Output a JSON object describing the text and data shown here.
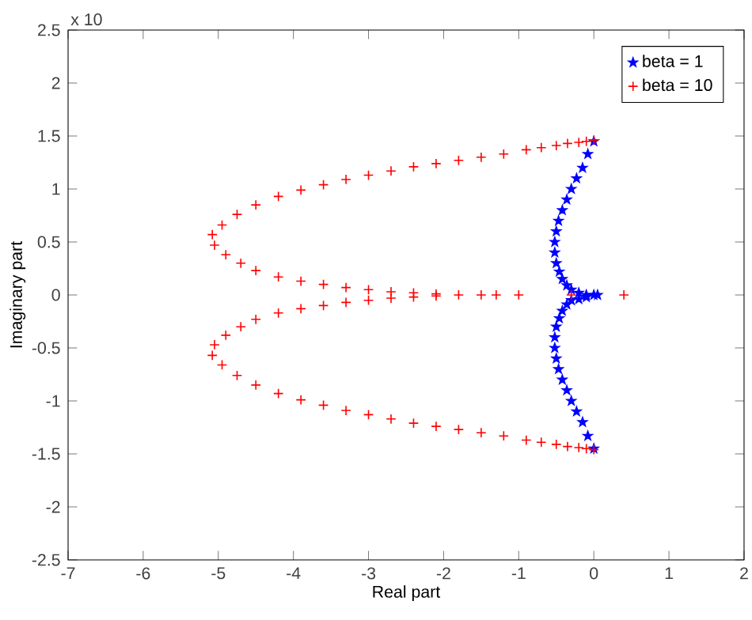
{
  "chart_data": {
    "type": "scatter",
    "xlabel": "Real part",
    "ylabel": "Imaginary part",
    "annotations": [
      "x 10"
    ],
    "xlim": [
      -7,
      2
    ],
    "ylim": [
      -2.5,
      2.5
    ],
    "xticks": [
      -7,
      -6,
      -5,
      -4,
      -3,
      -2,
      -1,
      0,
      1,
      2
    ],
    "yticks": [
      -2.5,
      -2,
      -1.5,
      -1,
      -0.5,
      0,
      0.5,
      1,
      1.5,
      2,
      2.5
    ],
    "grid": false,
    "legend": "top right",
    "series": [
      {
        "name": "beta = 1",
        "color": "#0000ff",
        "marker": "star",
        "x": [
          0,
          -0.08,
          -0.15,
          -0.23,
          -0.3,
          -0.36,
          -0.42,
          -0.47,
          -0.5,
          -0.52,
          -0.52,
          -0.5,
          -0.46,
          -0.42,
          -0.36,
          -0.3,
          -0.2,
          -0.1,
          0,
          0.05,
          -0.1,
          -0.2,
          -0.3,
          -0.36,
          -0.42,
          -0.46,
          -0.5,
          -0.52,
          -0.52,
          -0.5,
          -0.47,
          -0.42,
          -0.36,
          -0.3,
          -0.23,
          -0.15,
          -0.08,
          0
        ],
        "values": [
          1.45,
          1.33,
          1.2,
          1.1,
          1.0,
          0.9,
          0.8,
          0.7,
          0.6,
          0.5,
          0.4,
          0.3,
          0.22,
          0.15,
          0.09,
          0.05,
          0.02,
          0,
          0,
          0,
          -0.02,
          -0.04,
          -0.05,
          -0.09,
          -0.15,
          -0.22,
          -0.3,
          -0.4,
          -0.5,
          -0.6,
          -0.7,
          -0.8,
          -0.9,
          -1.0,
          -1.1,
          -1.2,
          -1.33,
          -1.45
        ]
      },
      {
        "name": "beta = 10",
        "color": "#ff0000",
        "marker": "cross",
        "x": [
          0,
          -0.1,
          -0.2,
          -0.35,
          -0.5,
          -0.7,
          -0.9,
          -1.2,
          -1.5,
          -1.8,
          -2.1,
          -2.4,
          -2.7,
          -3.0,
          -3.3,
          -3.6,
          -3.9,
          -4.2,
          -4.5,
          -4.75,
          -4.95,
          -5.08,
          -5.05,
          -4.9,
          -4.7,
          -4.5,
          -4.2,
          -3.9,
          -3.6,
          -3.3,
          -3.0,
          -2.7,
          -2.4,
          -2.1,
          -1.8,
          -1.5,
          -1.3,
          -1.0,
          -0.3,
          0.4,
          -2.1,
          -2.4,
          -2.7,
          -3.0,
          -3.3,
          -3.6,
          -3.9,
          -4.2,
          -4.5,
          -4.7,
          -4.9,
          -5.05,
          -5.08,
          -4.95,
          -4.75,
          -4.5,
          -4.2,
          -3.9,
          -3.6,
          -3.3,
          -3.0,
          -2.7,
          -2.4,
          -2.1,
          -1.8,
          -1.5,
          -1.2,
          -0.9,
          -0.7,
          -0.5,
          -0.35,
          -0.2,
          -0.1,
          0
        ],
        "values": [
          1.46,
          1.45,
          1.44,
          1.43,
          1.41,
          1.39,
          1.37,
          1.33,
          1.3,
          1.27,
          1.24,
          1.21,
          1.17,
          1.13,
          1.09,
          1.04,
          0.99,
          0.93,
          0.85,
          0.76,
          0.66,
          0.57,
          0.47,
          0.38,
          0.3,
          0.23,
          0.17,
          0.13,
          0.1,
          0.07,
          0.05,
          0.03,
          0.02,
          0.01,
          0,
          0,
          0,
          0,
          0,
          0,
          -0.01,
          -0.02,
          -0.03,
          -0.05,
          -0.07,
          -0.1,
          -0.13,
          -0.17,
          -0.23,
          -0.3,
          -0.38,
          -0.47,
          -0.57,
          -0.66,
          -0.76,
          -0.85,
          -0.93,
          -0.99,
          -1.04,
          -1.09,
          -1.13,
          -1.17,
          -1.21,
          -1.24,
          -1.27,
          -1.3,
          -1.33,
          -1.37,
          -1.39,
          -1.41,
          -1.43,
          -1.44,
          -1.45,
          -1.46
        ]
      }
    ]
  }
}
